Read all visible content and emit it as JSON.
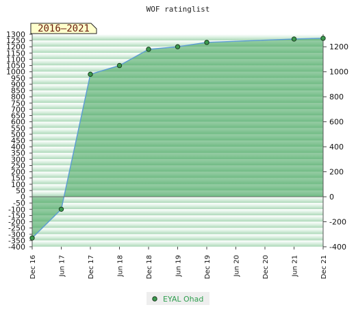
{
  "chart_data": {
    "type": "area",
    "title": "WOF ratinglist",
    "period_label": "2016–2021",
    "xlabel": "",
    "ylabel": "",
    "x_tick_labels": [
      "Dec 16",
      "Jun 17",
      "Dec 17",
      "Jun 18",
      "Dec 18",
      "Jun 19",
      "Dec 19",
      "Jun 20",
      "Dec 20",
      "Jun 21",
      "Dec 21"
    ],
    "left_axis": {
      "ylim": [
        -400,
        1300
      ],
      "tick_labels": [
        "1300",
        "1250",
        "1200",
        "1150",
        "1100",
        "1050",
        "1000",
        "950",
        "900",
        "850",
        "800",
        "750",
        "700",
        "650",
        "600",
        "550",
        "500",
        "450",
        "400",
        "350",
        "300",
        "250",
        "200",
        "150",
        "100",
        "50",
        "0",
        "-50",
        "-100",
        "-150",
        "-200",
        "-250",
        "-300",
        "-350",
        "-400"
      ]
    },
    "right_axis": {
      "ylim": [
        -400,
        1300
      ],
      "tick_labels": [
        "1200",
        "1000",
        "800",
        "600",
        "400",
        "200",
        "0",
        "-200",
        "-400"
      ]
    },
    "series": [
      {
        "name": "EYAL Ohad",
        "points": [
          {
            "x": "Dec 16",
            "y": -330
          },
          {
            "x": "Jun 17",
            "y": -100
          },
          {
            "x": "Dec 17",
            "y": 980
          },
          {
            "x": "Jun 18",
            "y": 1050
          },
          {
            "x": "Dec 18",
            "y": 1180
          },
          {
            "x": "Jun 19",
            "y": 1200
          },
          {
            "x": "Dec 19",
            "y": 1235
          },
          {
            "x": "Jun 21",
            "y": 1262
          },
          {
            "x": "Dec 21",
            "y": 1268
          }
        ]
      }
    ],
    "grid": true,
    "legend_position": "bottom-center",
    "colors": {
      "fill": "#3fa35a",
      "line": "#5b9bd5",
      "marker": "#3d9a4f",
      "marker_edge": "#1a3d1f",
      "badge_bg": "#ffffcc",
      "badge_text": "#6b1a0d",
      "legend_text": "#2e9e4e"
    }
  }
}
